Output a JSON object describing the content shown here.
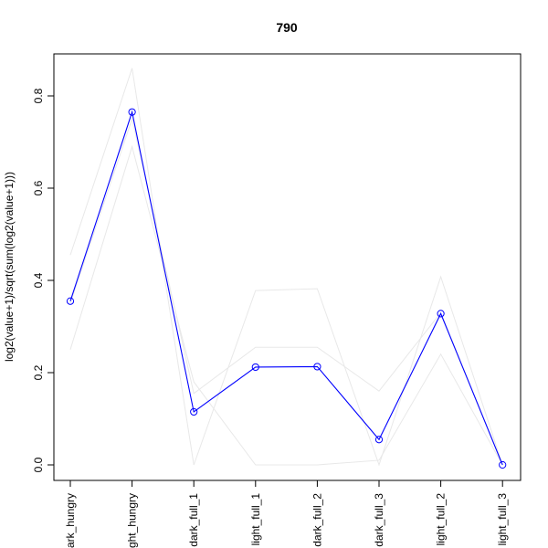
{
  "chart_data": {
    "type": "line",
    "title": "790",
    "xlabel": "",
    "ylabel": "log2(value+1)/sqrt(sum(log2(value+1)))",
    "categories": [
      "dark_hungry",
      "light_hungry",
      "dark_full_1",
      "light_full_1",
      "dark_full_2",
      "dark_full_3",
      "light_full_2",
      "light_full_3"
    ],
    "ylim": [
      -0.03,
      0.88
    ],
    "yticks": [
      0.0,
      0.2,
      0.4,
      0.6,
      0.8
    ],
    "ytick_labels": [
      "0.0",
      "0.2",
      "0.4",
      "0.6",
      "0.8"
    ],
    "grid": false,
    "series": [
      {
        "values": [
          0.355,
          0.765,
          0.115,
          0.212,
          0.213,
          0.055,
          0.328,
          0.0
        ],
        "color": "#0000ff",
        "markers": true
      },
      {
        "values": [
          0.455,
          0.86,
          0.0,
          0.378,
          0.382,
          0.0,
          0.408,
          0.0
        ],
        "color": "#e8e8e8",
        "markers": false
      },
      {
        "values": [
          0.25,
          0.69,
          0.18,
          0.0,
          0.0,
          0.01,
          0.24,
          0.0
        ],
        "color": "#e8e8e8",
        "markers": false
      },
      {
        "values": [
          0.35,
          0.75,
          0.155,
          0.255,
          0.255,
          0.16,
          0.33,
          0.0
        ],
        "color": "#e8e8e8",
        "markers": false
      }
    ]
  }
}
